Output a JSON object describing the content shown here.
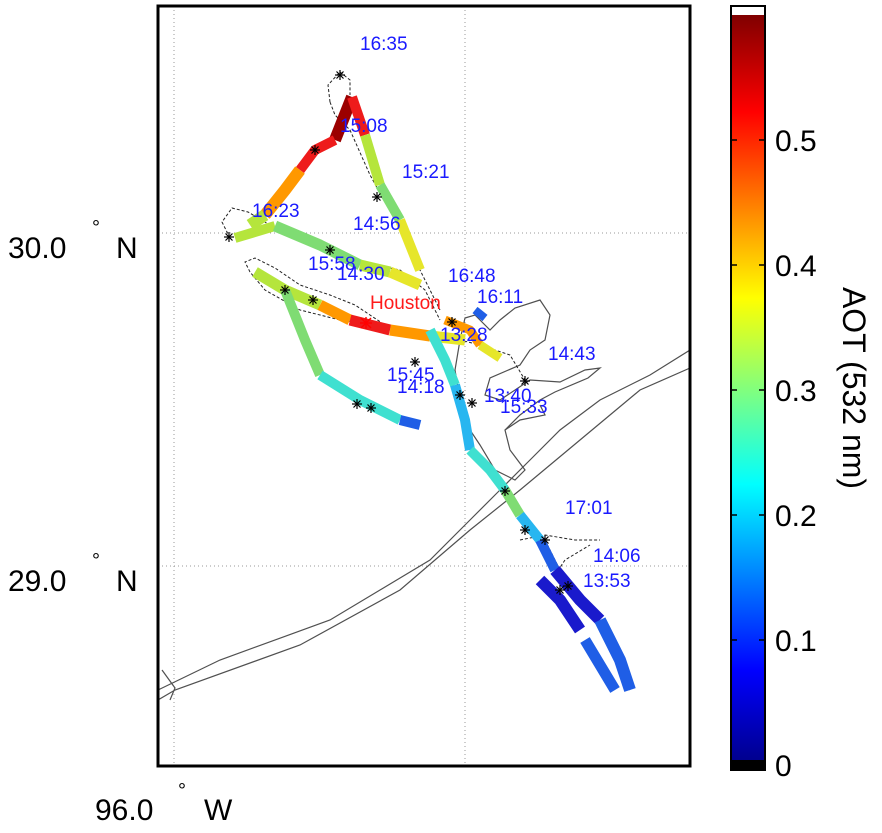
{
  "map": {
    "lat_labels": [
      {
        "value": "30.0",
        "hemisphere": "N"
      },
      {
        "value": "29.0",
        "hemisphere": "N"
      }
    ],
    "lon_labels": [
      {
        "value": "96.0",
        "hemisphere": "W"
      }
    ],
    "degree_symbol": "°",
    "city_label": "Houston",
    "time_labels": [
      "16:35",
      "15:08",
      "15:21",
      "16:23",
      "14:56",
      "15:58",
      "14:30",
      "16:48",
      "16:11",
      "13:28",
      "14:43",
      "15:45",
      "14:18",
      "13:40",
      "15:33",
      "17:01",
      "14:06",
      "13:53"
    ],
    "track_colors": {
      "dark_red": "#9b0000",
      "red": "#ee1b1b",
      "orange": "#ff9800",
      "yellow": "#e6e62a",
      "yellow_green": "#b5e53c",
      "green": "#7fdc73",
      "cyan": "#3fe0d0",
      "light_blue": "#27b6f0",
      "blue": "#1f5ee6",
      "dark_blue": "#1a1acc"
    },
    "marker_color": "#000000",
    "city_marker_color": "#ff0000",
    "label_color": "#1a1aff",
    "coastline_color": "#505050"
  },
  "colorbar": {
    "label": "AOT (532 nm)",
    "ticks": [
      "0",
      "0.1",
      "0.2",
      "0.3",
      "0.4",
      "0.5"
    ],
    "range": [
      0,
      0.6
    ],
    "colormap": "jet",
    "top_cap_color": "#ffffff",
    "bottom_cap_color": "#000000"
  }
}
